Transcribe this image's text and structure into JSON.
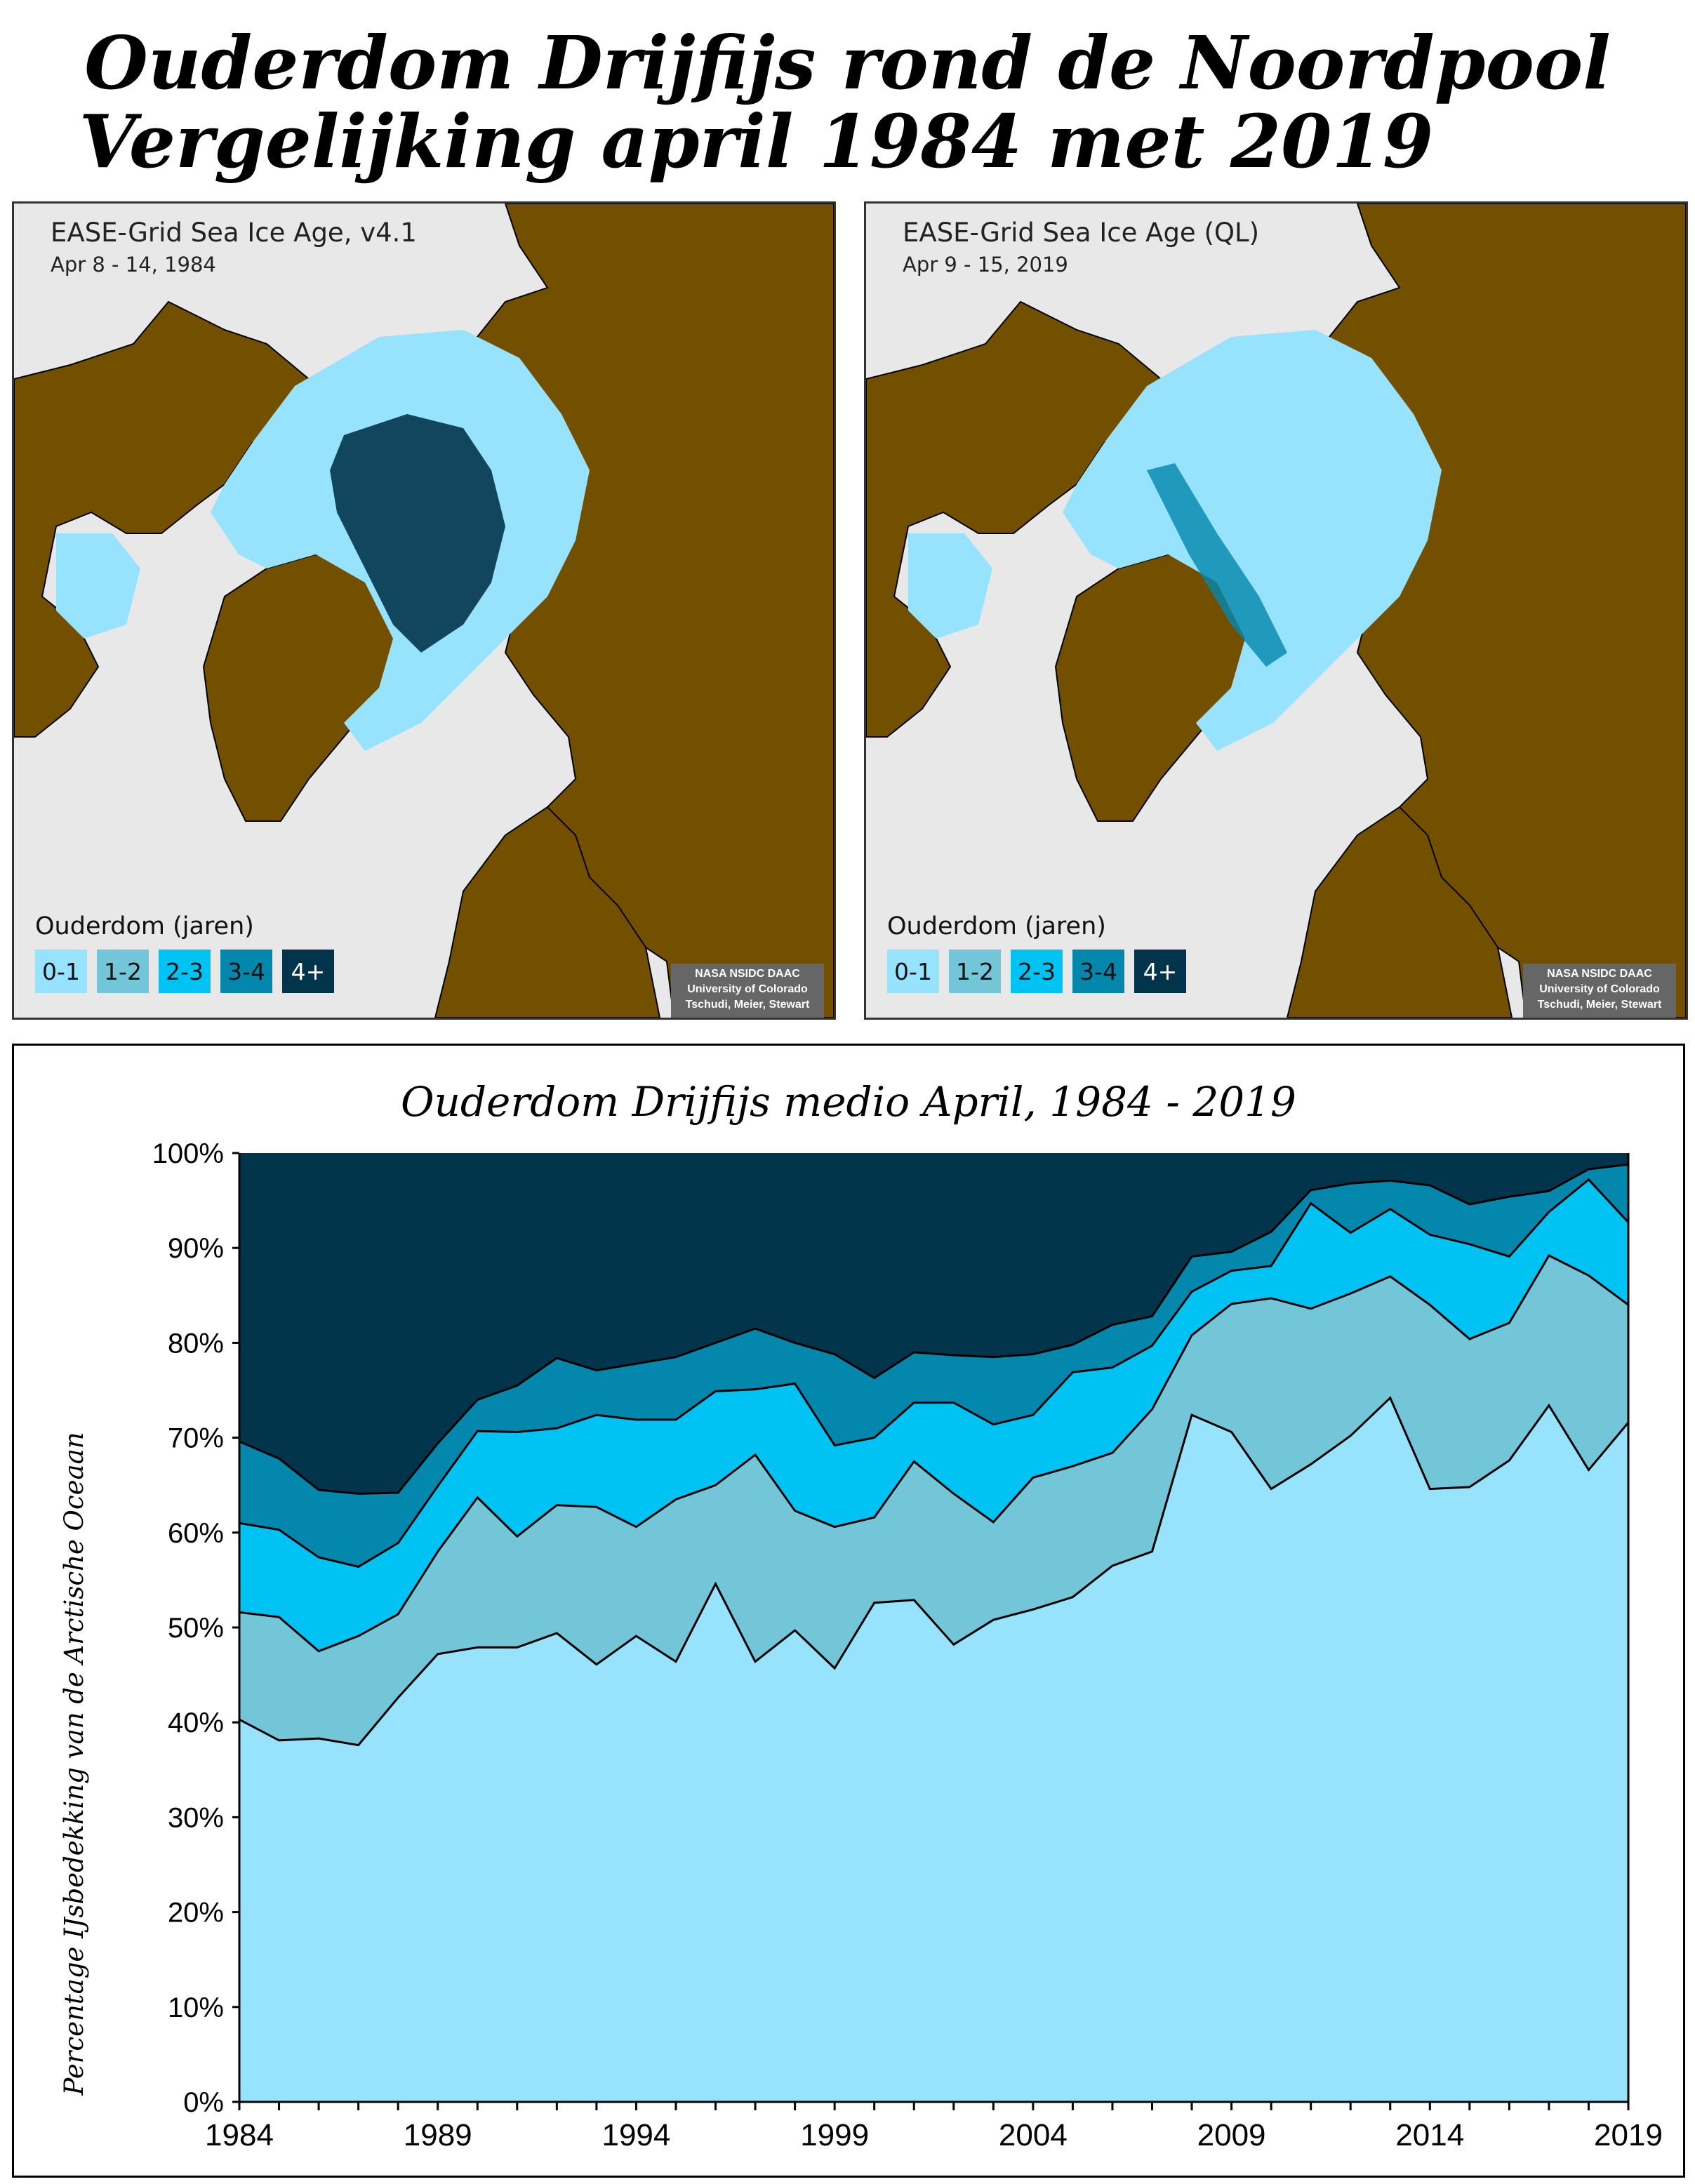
{
  "header": {
    "title_line1": "Ouderdom Drijfijs rond de Noordpool",
    "title_line2": "Vergelijking april 1984 met 2019"
  },
  "maps": [
    {
      "title": "EASE-Grid Sea Ice Age, v4.1",
      "date": "Apr 8 - 14, 1984"
    },
    {
      "title": "EASE-Grid Sea Ice Age (QL)",
      "date": "Apr 9 - 15, 2019"
    }
  ],
  "legend": {
    "title": "Ouderdom (jaren)",
    "items": [
      {
        "label": "0-1",
        "color": "#97e2fd"
      },
      {
        "label": "1-2",
        "color": "#72c6d8"
      },
      {
        "label": "2-3",
        "color": "#00c3f4"
      },
      {
        "label": "3-4",
        "color": "#0387ad"
      },
      {
        "label": "4+",
        "color": "#02354c"
      }
    ]
  },
  "credit": {
    "line1": "NASA NSIDC DAAC",
    "line2": "University of Colorado",
    "line3": "Tschudi, Meier, Stewart"
  },
  "colors": {
    "land": "#735000",
    "ocean": "#e8e8e8"
  },
  "chart_data": {
    "type": "area",
    "stacked": true,
    "title": "Ouderdom Drijfijs medio April, 1984 - 2019",
    "xlabel": "",
    "ylabel": "Percentage IJsbedekking van de Arctische Oceaan",
    "ylim": [
      0,
      100
    ],
    "yticks": [
      "0%",
      "10%",
      "20%",
      "30%",
      "40%",
      "50%",
      "60%",
      "70%",
      "80%",
      "90%",
      "100%"
    ],
    "xticks": [
      "1984",
      "1989",
      "1994",
      "1999",
      "2004",
      "2009",
      "2014",
      "2019"
    ],
    "grid": false,
    "x": [
      1984,
      1985,
      1986,
      1987,
      1988,
      1989,
      1990,
      1991,
      1992,
      1993,
      1994,
      1995,
      1996,
      1997,
      1998,
      1999,
      2000,
      2001,
      2002,
      2003,
      2004,
      2005,
      2006,
      2007,
      2008,
      2009,
      2010,
      2011,
      2012,
      2013,
      2014,
      2015,
      2016,
      2017,
      2018,
      2019
    ],
    "series": [
      {
        "name": "0-1",
        "color": "#97e2fd",
        "values": [
          40.3,
          38.1,
          38.3,
          37.6,
          42.6,
          47.2,
          47.9,
          47.9,
          49.4,
          46.1,
          49.1,
          46.4,
          54.6,
          46.4,
          49.7,
          45.7,
          52.6,
          52.9,
          48.2,
          50.8,
          51.9,
          53.2,
          56.5,
          58.0,
          72.4,
          70.6,
          64.6,
          67.2,
          70.2,
          74.2,
          64.6,
          64.8,
          67.6,
          73.4,
          66.6,
          71.6
        ]
      },
      {
        "name": "1-2",
        "color": "#72c6d8",
        "values": [
          11.3,
          13.0,
          9.2,
          11.5,
          8.8,
          10.8,
          15.8,
          11.7,
          13.5,
          16.6,
          11.5,
          17.1,
          10.4,
          21.8,
          12.6,
          14.9,
          9.0,
          14.6,
          15.9,
          10.3,
          13.9,
          13.8,
          11.9,
          15.0,
          8.4,
          13.5,
          20.1,
          16.4,
          15.0,
          12.8,
          19.4,
          15.6,
          14.5,
          15.8,
          20.5,
          12.4
        ]
      },
      {
        "name": "2-3",
        "color": "#00c3f4",
        "values": [
          9.4,
          9.2,
          9.9,
          7.3,
          7.5,
          6.9,
          7.0,
          11.0,
          8.1,
          9.7,
          11.3,
          8.4,
          9.9,
          6.9,
          13.4,
          8.6,
          8.4,
          6.2,
          9.6,
          10.3,
          6.6,
          9.9,
          9.0,
          6.7,
          4.6,
          3.5,
          3.4,
          11.1,
          6.4,
          7.1,
          7.4,
          10.0,
          7.0,
          4.6,
          10.1,
          8.7
        ]
      },
      {
        "name": "3-4",
        "color": "#0387ad",
        "values": [
          8.6,
          7.5,
          7.1,
          7.7,
          5.3,
          4.5,
          3.3,
          4.9,
          7.4,
          4.7,
          5.9,
          6.6,
          5.1,
          6.4,
          4.3,
          9.6,
          6.3,
          5.3,
          5.0,
          7.1,
          6.4,
          2.9,
          4.5,
          3.1,
          3.7,
          2.0,
          3.6,
          1.4,
          5.2,
          3.0,
          5.2,
          4.2,
          6.3,
          2.2,
          1.1,
          6.1
        ]
      },
      {
        "name": "4+",
        "color": "#02354c",
        "values": [
          30.4,
          32.2,
          35.5,
          35.9,
          35.8,
          30.6,
          26.0,
          24.5,
          21.6,
          22.9,
          22.2,
          21.5,
          20.0,
          18.5,
          20.0,
          21.2,
          23.7,
          21.0,
          21.3,
          21.5,
          21.2,
          20.2,
          18.1,
          17.2,
          10.9,
          10.4,
          8.3,
          3.9,
          3.2,
          2.9,
          3.4,
          5.4,
          4.6,
          4.0,
          1.7,
          1.2
        ]
      }
    ]
  }
}
